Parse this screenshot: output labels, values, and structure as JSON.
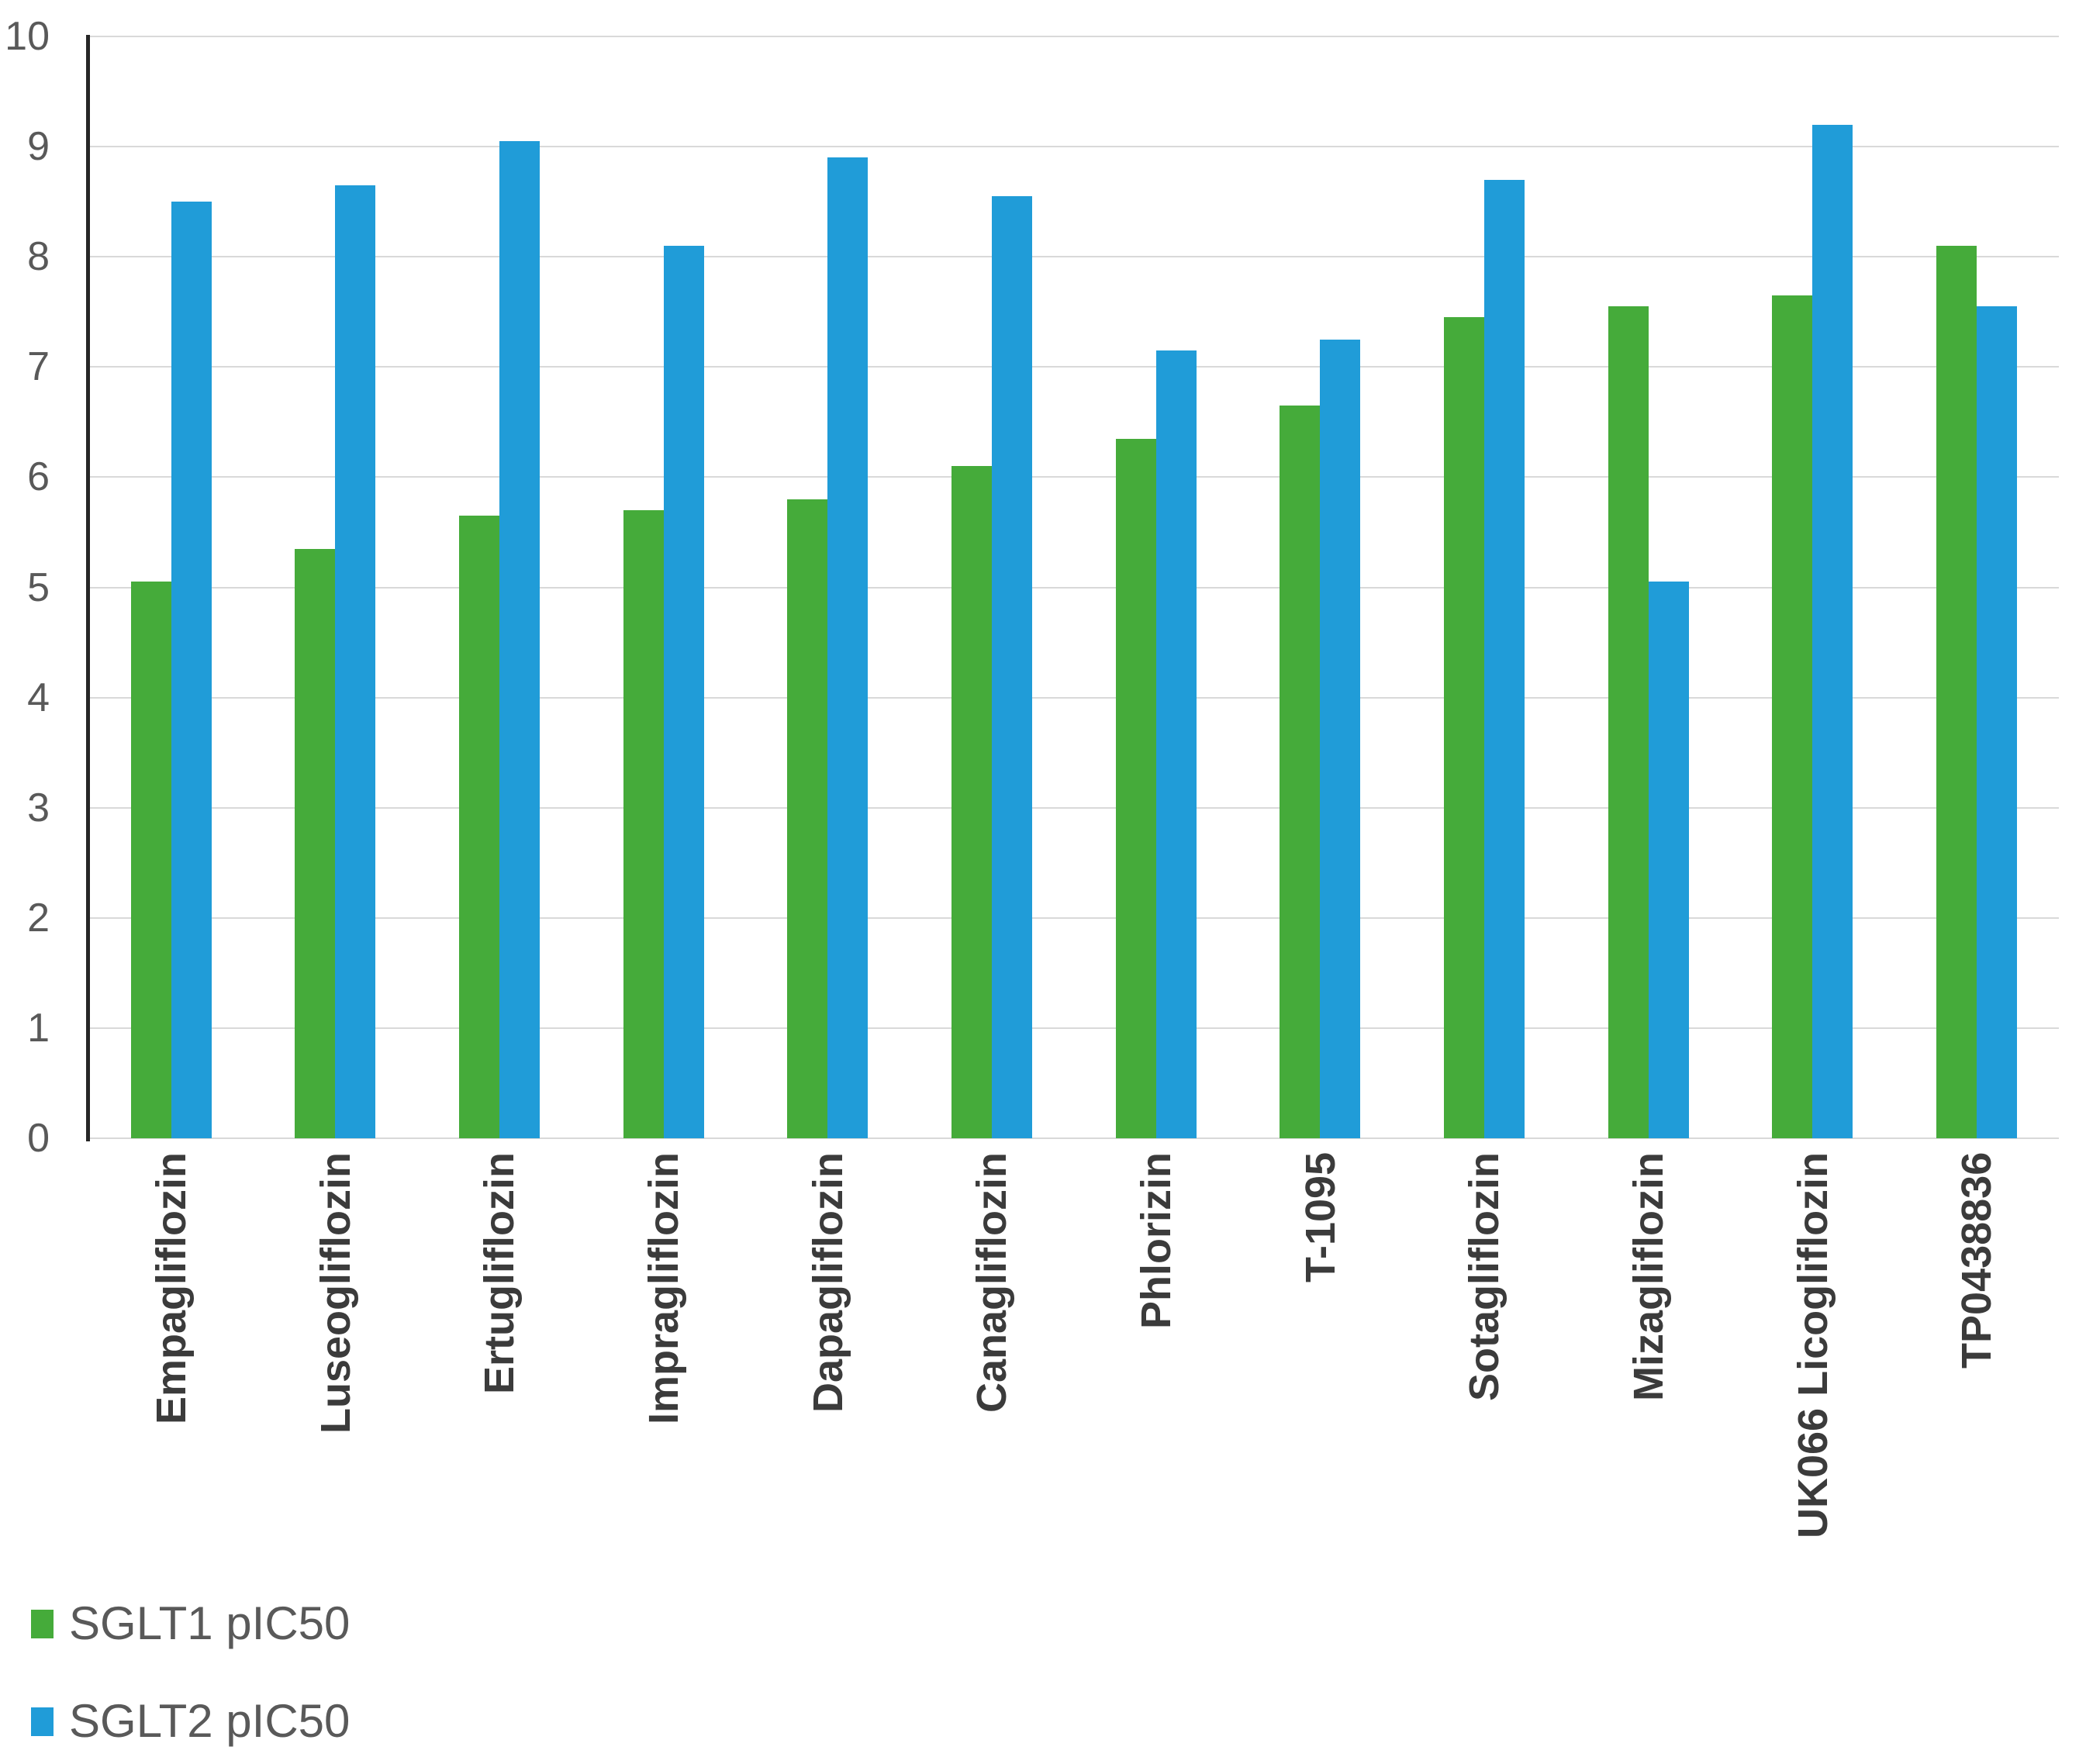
{
  "chart_data": {
    "type": "bar",
    "title": "",
    "xlabel": "",
    "ylabel": "",
    "categories": [
      "Empagliflozin",
      "Luseogliflozin",
      "Ertugliflozin",
      "Impragliflozin",
      "Dapagliflozin",
      "Canagliflozin",
      "Phlorizin",
      "T-1095",
      "Sotagliflozin",
      "Mizagliflozin",
      "UK066 Licogliflozin",
      "TP0438836"
    ],
    "series": [
      {
        "name": "SGLT1 pIC50",
        "color": "#45AB3A",
        "values": [
          5.05,
          5.35,
          5.65,
          5.7,
          5.8,
          6.1,
          6.35,
          6.65,
          7.45,
          7.55,
          7.65,
          8.1
        ]
      },
      {
        "name": "SGLT2 pIC50",
        "color": "#209CD8",
        "values": [
          8.5,
          8.65,
          9.05,
          8.1,
          8.9,
          8.55,
          7.15,
          7.25,
          8.7,
          5.05,
          9.2,
          7.55
        ]
      }
    ],
    "ylim": [
      0,
      10
    ],
    "yticks": [
      0,
      1,
      2,
      3,
      4,
      5,
      6,
      7,
      8,
      9,
      10
    ],
    "ytick_labels": [
      "0",
      "1",
      "2",
      "3",
      "4",
      "5",
      "6",
      "7",
      "8",
      "9",
      "10"
    ],
    "grid": true,
    "legend_position": "bottom-left"
  },
  "legend": {
    "items": [
      {
        "label": "SGLT1 pIC50",
        "color": "#45AB3A"
      },
      {
        "label": "SGLT2 pIC50",
        "color": "#209CD8"
      }
    ]
  },
  "colors": {
    "background": "#ffffff",
    "gridline": "#d9d9d9",
    "axis_line": "#262626",
    "tick_text": "#595959",
    "category_text": "#3b3b3b",
    "legend_text": "#595959",
    "series_green": "#45AB3A",
    "series_blue": "#209CD8"
  }
}
